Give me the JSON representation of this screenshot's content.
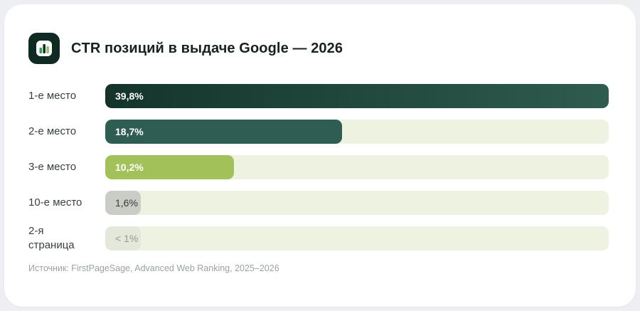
{
  "header": {
    "title": "CTR позиций в выдаче Google — 2026",
    "logo_icon": "bar-chart-icon"
  },
  "chart_data": {
    "type": "bar",
    "orientation": "horizontal",
    "title": "CTR позиций в выдаче Google — 2026",
    "categories": [
      "1-е место",
      "2-е место",
      "3-е место",
      "10-е место",
      "2-я страница"
    ],
    "values": [
      39.8,
      18.7,
      10.2,
      1.6,
      0.5
    ],
    "value_labels": [
      "39,8%",
      "18,7%",
      "10,2%",
      "1,6%",
      "< 1%"
    ],
    "max_value": 39.8,
    "xlim": [
      0,
      39.8
    ],
    "grid": false,
    "legend": false,
    "track_color": "#eef2e1",
    "rows": [
      {
        "label": "1-е место",
        "display": "39,8%",
        "value": 39.8,
        "color_from": "#14342b",
        "color_to": "#2e5c4f",
        "text_color": "#ffffff",
        "bold": true
      },
      {
        "label": "2-е место",
        "display": "18,7%",
        "value": 18.7,
        "color_from": "#2e5e53",
        "color_to": "#2e5e53",
        "text_color": "#ffffff",
        "bold": true
      },
      {
        "label": "3-е место",
        "display": "10,2%",
        "value": 10.2,
        "color_from": "#a2c158",
        "color_to": "#a2c158",
        "text_color": "#ffffff",
        "bold": true
      },
      {
        "label": "10-е место",
        "display": "1,6%",
        "value": 1.6,
        "color_from": "#c9cdc6",
        "color_to": "#c9cdc6",
        "text_color": "#343d37",
        "bold": false
      },
      {
        "label": "2-я страница",
        "display": "< 1%",
        "value": 0.5,
        "color_from": "#e4e8da",
        "color_to": "#e4e8da",
        "text_color": "#939c92",
        "bold": false
      }
    ]
  },
  "footer": {
    "source": "Источник: FirstPageSage, Advanced Web Ranking, 2025–2026"
  }
}
